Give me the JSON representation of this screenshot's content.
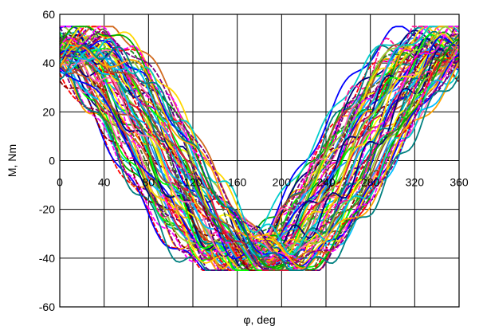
{
  "chart_data": {
    "type": "line",
    "title": "",
    "xlabel": "φ, deg",
    "ylabel": "M, Nm",
    "xlim": [
      0,
      360
    ],
    "ylim": [
      -60,
      60
    ],
    "x_ticks": [
      0,
      40,
      80,
      120,
      160,
      200,
      240,
      280,
      320,
      360
    ],
    "y_ticks": [
      -60,
      -40,
      -20,
      0,
      20,
      40,
      60
    ],
    "x_tick_labels": [
      "0",
      "40",
      "80",
      "120",
      "160",
      "200",
      "240",
      "280",
      "320",
      "360"
    ],
    "y_tick_labels": [
      "-60",
      "-40",
      "-20",
      "0",
      "20",
      "40",
      "60"
    ],
    "grid": true,
    "legend": "none",
    "series_count": 80,
    "series_model": "M(φ) ≈ offset + amplitude·cos(φ − phase), many measured curves",
    "envelope": {
      "x": [
        0,
        40,
        80,
        120,
        160,
        180,
        200,
        240,
        280,
        320,
        360
      ],
      "upper": [
        54,
        50,
        42,
        26,
        8,
        2,
        8,
        24,
        38,
        50,
        54
      ],
      "lower": [
        1,
        -4,
        -12,
        -26,
        -40,
        -44,
        -40,
        -28,
        -14,
        -4,
        1
      ]
    },
    "series_colors": [
      "#ff0000",
      "#0000ff",
      "#00aa00",
      "#ff00ff",
      "#00cccc",
      "#ffa500",
      "#800080",
      "#008080",
      "#000080",
      "#8b0000",
      "#ffff00",
      "#00ff00",
      "#ff1493",
      "#1e90ff",
      "#a0522d",
      "#228b22",
      "#9acd32",
      "#dc143c",
      "#4b0082",
      "#ff69b4",
      "#00bfff",
      "#556b2f",
      "#d2691e",
      "#ffd700"
    ]
  }
}
